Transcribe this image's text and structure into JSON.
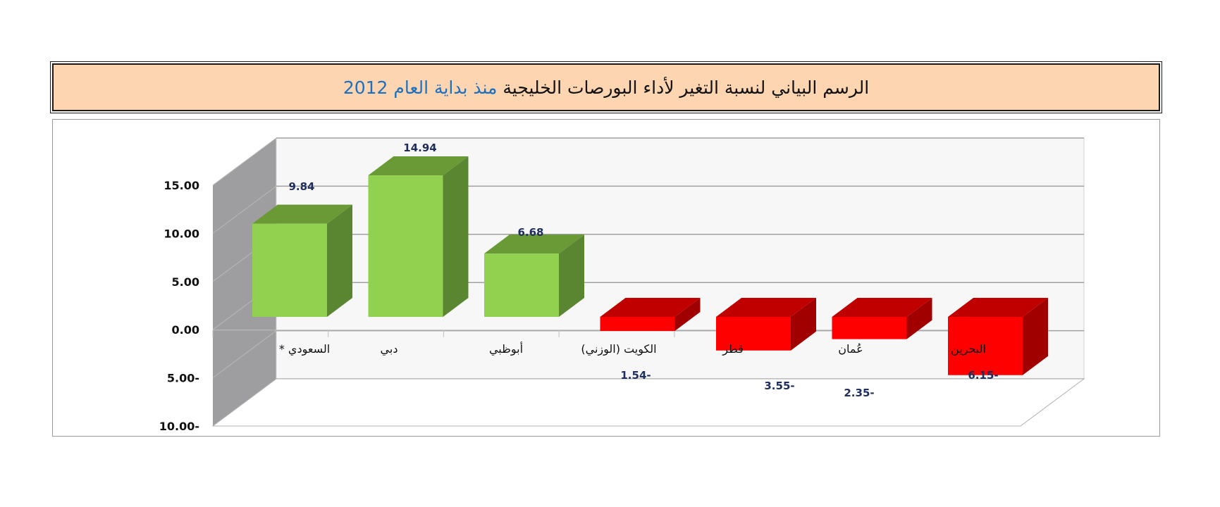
{
  "title": {
    "main": "الرسم البياني لنسبة التغير لأداء البورصات الخليجية",
    "accent": "منذ بداية العام",
    "year": "2012"
  },
  "chart_data": {
    "type": "bar",
    "style": "3d-column",
    "categories": [
      "السعودي *",
      "دبي",
      "أبوظبي",
      "الكويت (الوزني)",
      "قطر",
      "عُمان",
      "البحرين"
    ],
    "values": [
      9.84,
      14.94,
      6.68,
      -1.54,
      -3.55,
      -2.35,
      -6.15
    ],
    "data_labels": [
      "9.84",
      "14.94",
      "6.68",
      "1.54-",
      "3.55-",
      "2.35-",
      "6.15-"
    ],
    "yticks": [
      "15.00",
      "10.00",
      "5.00",
      "0.00",
      "5.00-",
      "10.00-"
    ],
    "ylim": [
      -10,
      15
    ],
    "grid": true,
    "colors": {
      "positive_front": "#92d050",
      "positive_top": "#6a9a35",
      "positive_side": "#5a8531",
      "negative_front": "#ff0000",
      "negative_top": "#c00000",
      "negative_side": "#a00000",
      "back_wall": "#f7f7f7",
      "side_wall": "#9e9da0",
      "grid": "#a0a0a0"
    }
  }
}
